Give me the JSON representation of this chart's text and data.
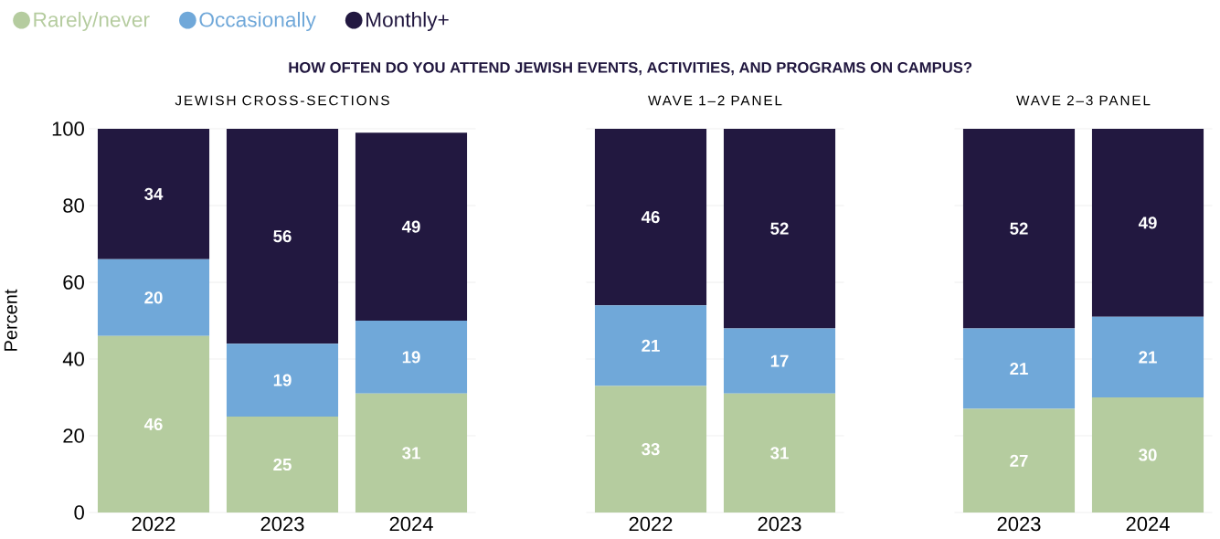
{
  "chart_data": [
    {
      "type": "bar",
      "stacked": true,
      "title": "JEWISH CROSS-SECTIONS",
      "annotations": [
        "HOW OFTEN DO YOU ATTEND JEWISH EVENTS, ACTIVITIES, AND PROGRAMS ON CAMPUS?"
      ],
      "ylabel": "Percent",
      "categories": [
        "2022",
        "2023",
        "2024"
      ],
      "series": [
        {
          "name": "Rarely/never",
          "color": "#b5cc9f",
          "values": [
            46,
            25,
            31
          ]
        },
        {
          "name": "Occasionally",
          "color": "#70a8d9",
          "values": [
            20,
            19,
            19
          ]
        },
        {
          "name": "Monthly+",
          "color": "#221840",
          "values": [
            34,
            56,
            49
          ]
        }
      ],
      "ylim": [
        0,
        100
      ],
      "yticks": [
        0,
        20,
        40,
        60,
        80,
        100
      ],
      "grid": "y",
      "legend": "top left",
      "data_labels": true
    },
    {
      "type": "bar",
      "stacked": true,
      "title": "WAVE 1–2 PANEL",
      "categories": [
        "2022",
        "2023"
      ],
      "series": [
        {
          "color": "#b5cc9f",
          "values": [
            33,
            31
          ]
        },
        {
          "color": "#70a8d9",
          "values": [
            21,
            17
          ]
        },
        {
          "color": "#221840",
          "values": [
            46,
            52
          ]
        }
      ],
      "ylim": [
        0,
        100
      ],
      "yticks": [
        0,
        20,
        40,
        60,
        80,
        100
      ],
      "grid": "y",
      "tick_labels": "x",
      "data_labels": true
    },
    {
      "type": "bar",
      "stacked": true,
      "title": "WAVE 2–3 PANEL",
      "categories": [
        "2023",
        "2024"
      ],
      "series": [
        {
          "color": "#b5cc9f",
          "values": [
            27,
            30
          ]
        },
        {
          "color": "#70a8d9",
          "values": [
            21,
            21
          ]
        },
        {
          "color": "#221840",
          "values": [
            52,
            49
          ]
        }
      ],
      "ylim": [
        0,
        100
      ],
      "yticks": [
        0,
        20,
        40,
        60,
        80,
        100
      ],
      "grid": "y",
      "tick_labels": "x",
      "data_labels": true
    }
  ]
}
